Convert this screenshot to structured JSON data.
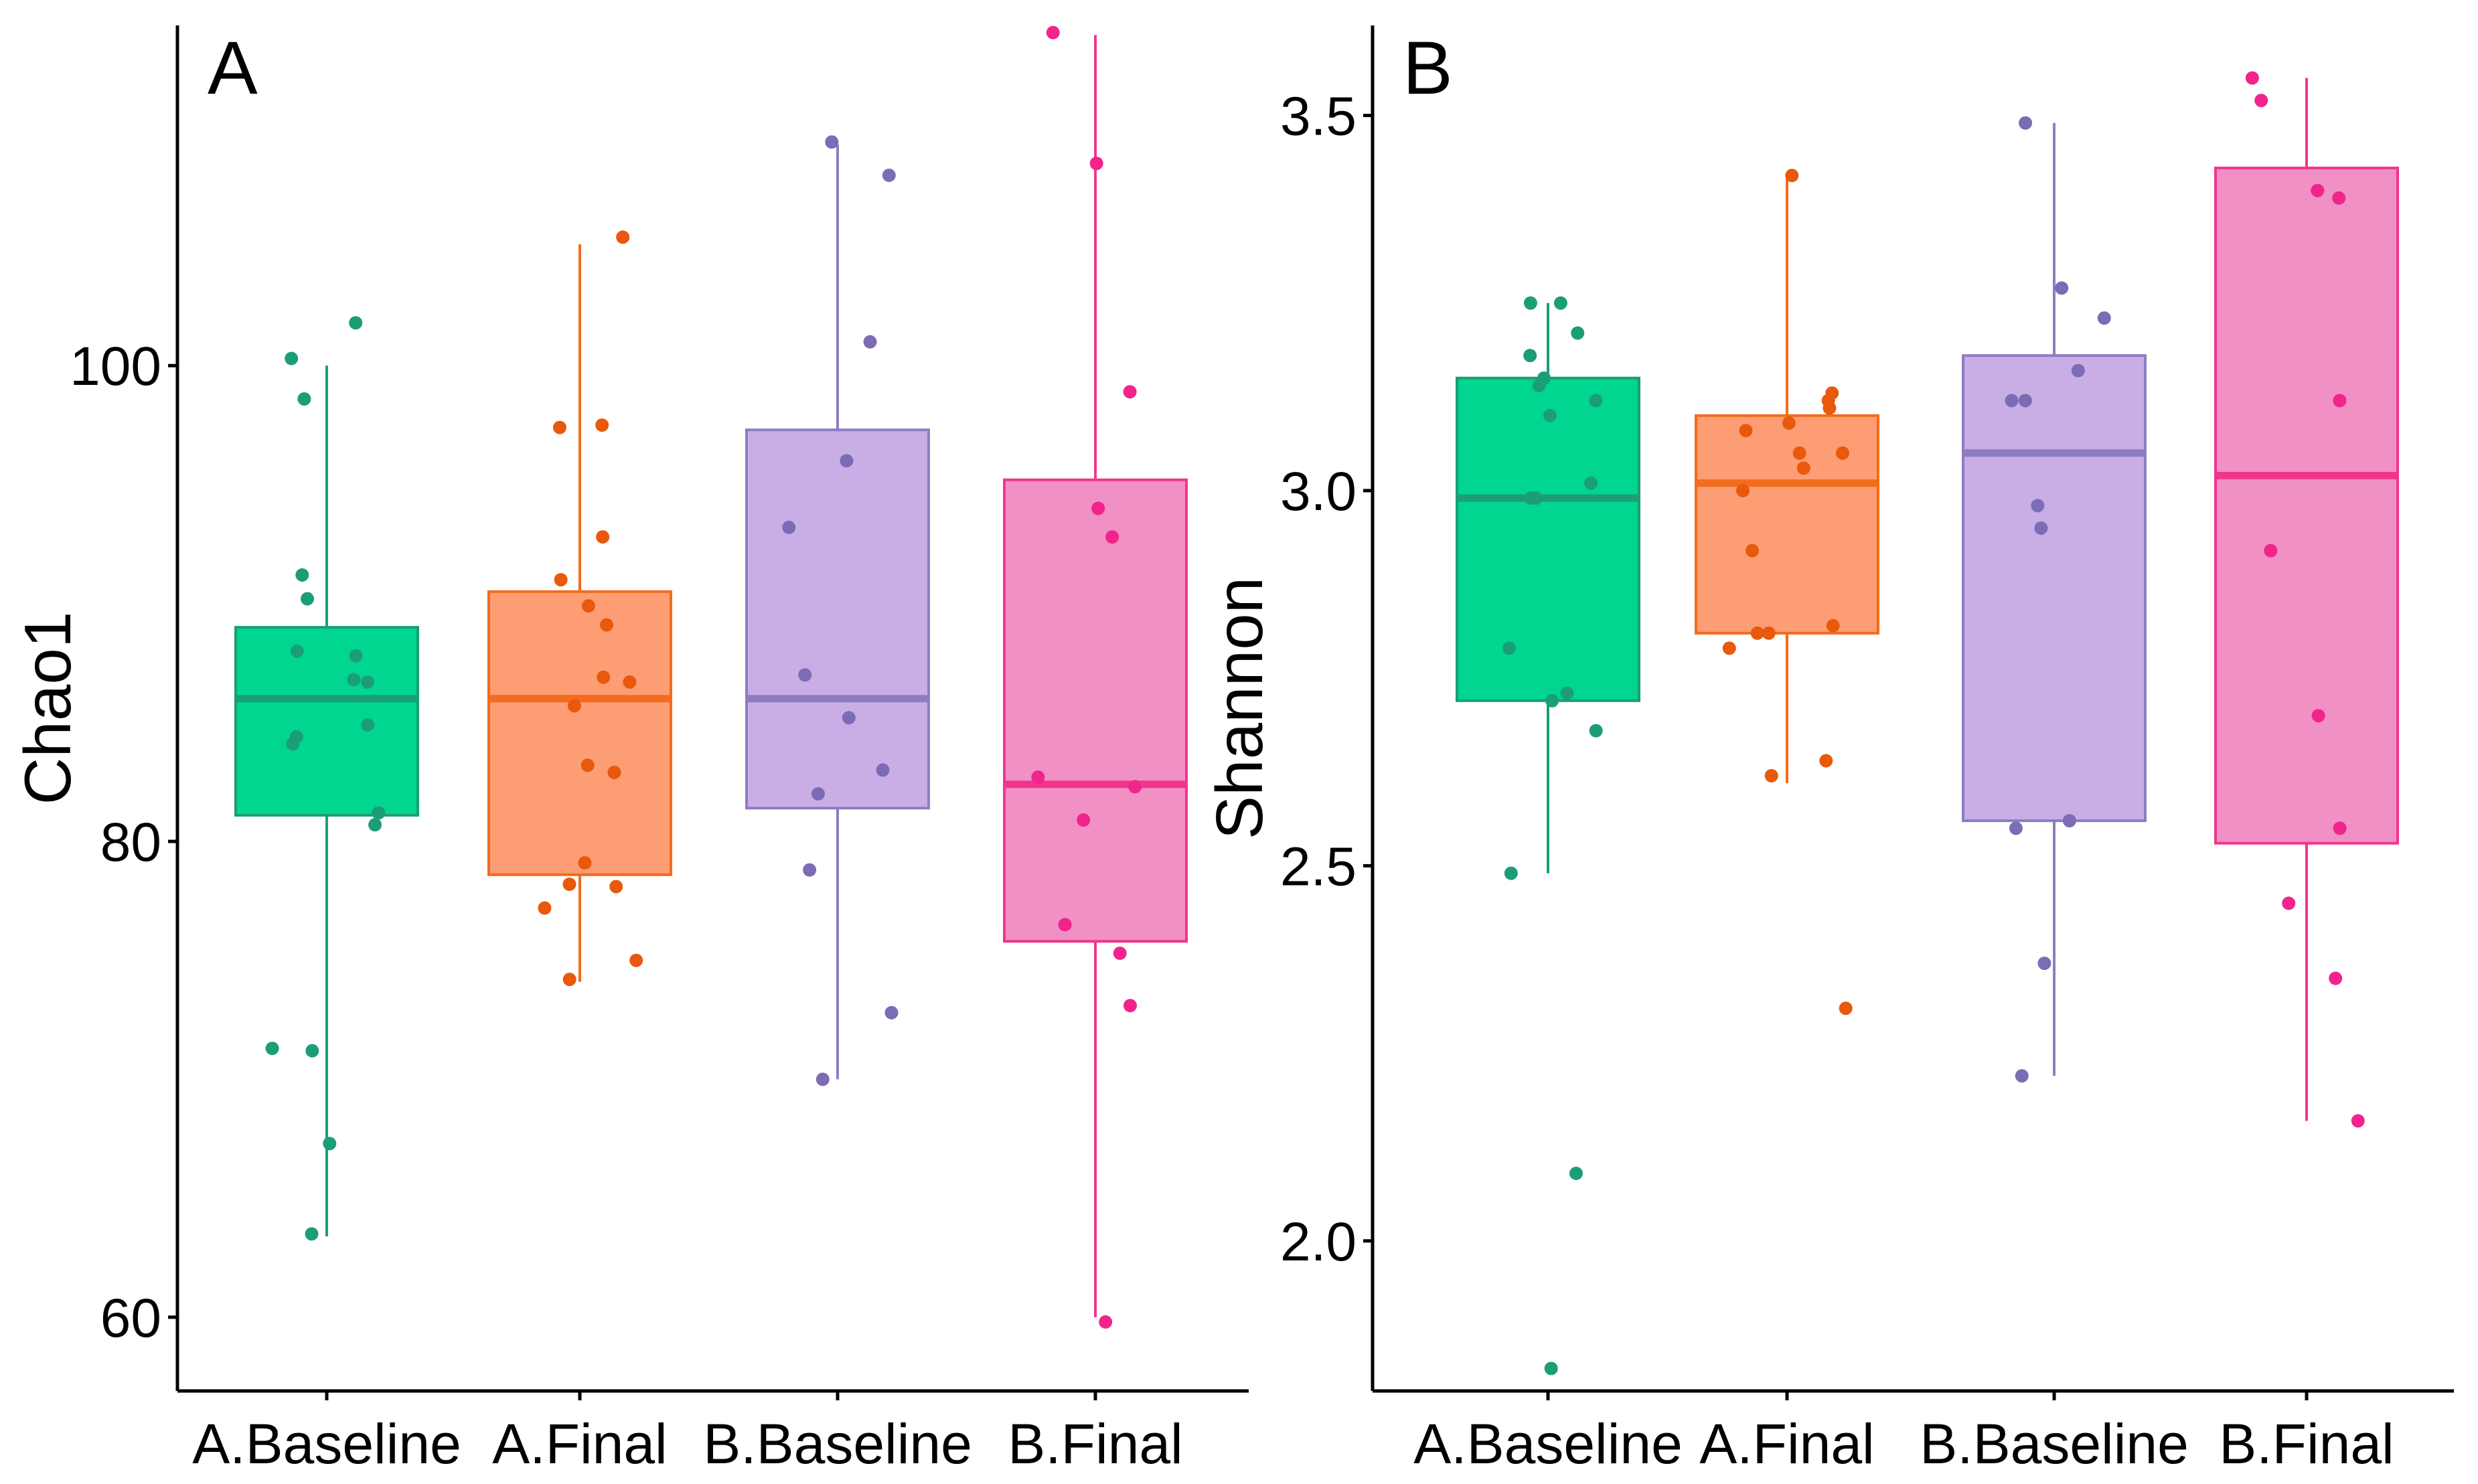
{
  "chart_data": [
    {
      "type": "box",
      "panel_label": "A",
      "xlabel": "",
      "ylabel": "Chao1",
      "ylim": [
        56.9,
        114.3
      ],
      "yticks": [
        60,
        80,
        100
      ],
      "ytick_labels": [
        "60",
        "80",
        "100"
      ],
      "categories": [
        "A.Baseline",
        "A.Final",
        "B.Baseline",
        "B.Final"
      ],
      "colors": {
        "fill": [
          "#00d68f",
          "#fd9d73",
          "#c9aee6",
          "#f090c4"
        ],
        "stroke": [
          "#1b9e77",
          "#f26b1e",
          "#8e7cc3",
          "#f0368c"
        ],
        "point": [
          "#1b9e77",
          "#e8590c",
          "#7c6bb5",
          "#f0248a"
        ]
      },
      "boxes": [
        {
          "whisker_low": 63.4,
          "q1": 81.1,
          "median": 86.0,
          "q3": 89.0,
          "whisker_high": 100.0
        },
        {
          "whisker_low": 74.1,
          "q1": 78.6,
          "median": 86.0,
          "q3": 90.5,
          "whisker_high": 105.1
        },
        {
          "whisker_low": 70.0,
          "q1": 81.4,
          "median": 86.0,
          "q3": 97.3,
          "whisker_high": 109.3
        },
        {
          "whisker_low": 60.0,
          "q1": 75.8,
          "median": 82.4,
          "q3": 95.2,
          "whisker_high": 113.9
        }
      ],
      "points": [
        {
          "group": 0,
          "value": 101.8
        },
        {
          "group": 0,
          "value": 100.3
        },
        {
          "group": 0,
          "value": 98.6
        },
        {
          "group": 0,
          "value": 91.2
        },
        {
          "group": 0,
          "value": 90.2
        },
        {
          "group": 0,
          "value": 88.0
        },
        {
          "group": 0,
          "value": 87.8
        },
        {
          "group": 0,
          "value": 86.8
        },
        {
          "group": 0,
          "value": 86.7
        },
        {
          "group": 0,
          "value": 84.9
        },
        {
          "group": 0,
          "value": 84.4
        },
        {
          "group": 0,
          "value": 84.1
        },
        {
          "group": 0,
          "value": 81.2
        },
        {
          "group": 0,
          "value": 80.7
        },
        {
          "group": 0,
          "value": 71.3
        },
        {
          "group": 0,
          "value": 71.2
        },
        {
          "group": 0,
          "value": 67.3
        },
        {
          "group": 0,
          "value": 63.5
        },
        {
          "group": 1,
          "value": 105.4
        },
        {
          "group": 1,
          "value": 97.5
        },
        {
          "group": 1,
          "value": 97.4
        },
        {
          "group": 1,
          "value": 92.8
        },
        {
          "group": 1,
          "value": 91.0
        },
        {
          "group": 1,
          "value": 89.9
        },
        {
          "group": 1,
          "value": 89.1
        },
        {
          "group": 1,
          "value": 86.9
        },
        {
          "group": 1,
          "value": 86.7
        },
        {
          "group": 1,
          "value": 85.7
        },
        {
          "group": 1,
          "value": 83.2
        },
        {
          "group": 1,
          "value": 82.9
        },
        {
          "group": 1,
          "value": 79.1
        },
        {
          "group": 1,
          "value": 78.2
        },
        {
          "group": 1,
          "value": 78.1
        },
        {
          "group": 1,
          "value": 77.2
        },
        {
          "group": 1,
          "value": 75.0
        },
        {
          "group": 1,
          "value": 74.2
        },
        {
          "group": 2,
          "value": 109.4
        },
        {
          "group": 2,
          "value": 108.0
        },
        {
          "group": 2,
          "value": 101.0
        },
        {
          "group": 2,
          "value": 96.0
        },
        {
          "group": 2,
          "value": 93.2
        },
        {
          "group": 2,
          "value": 87.0
        },
        {
          "group": 2,
          "value": 85.2
        },
        {
          "group": 2,
          "value": 83.0
        },
        {
          "group": 2,
          "value": 82.0
        },
        {
          "group": 2,
          "value": 78.8
        },
        {
          "group": 2,
          "value": 72.8
        },
        {
          "group": 2,
          "value": 70.0
        },
        {
          "group": 3,
          "value": 114.0
        },
        {
          "group": 3,
          "value": 108.5
        },
        {
          "group": 3,
          "value": 98.9
        },
        {
          "group": 3,
          "value": 94.0
        },
        {
          "group": 3,
          "value": 92.8
        },
        {
          "group": 3,
          "value": 82.7
        },
        {
          "group": 3,
          "value": 82.3
        },
        {
          "group": 3,
          "value": 80.9
        },
        {
          "group": 3,
          "value": 76.5
        },
        {
          "group": 3,
          "value": 75.3
        },
        {
          "group": 3,
          "value": 73.1
        },
        {
          "group": 3,
          "value": 59.8
        }
      ]
    },
    {
      "type": "box",
      "panel_label": "B",
      "xlabel": "",
      "ylabel": "Shannon",
      "ylim": [
        1.8,
        3.62
      ],
      "yticks": [
        2.0,
        2.5,
        3.0,
        3.5
      ],
      "ytick_labels": [
        "2.0",
        "2.5",
        "3.0",
        "3.5"
      ],
      "categories": [
        "A.Baseline",
        "A.Final",
        "B.Baseline",
        "B.Final"
      ],
      "colors": {
        "fill": [
          "#00d68f",
          "#fd9d73",
          "#c9aee6",
          "#f090c4"
        ],
        "stroke": [
          "#1b9e77",
          "#f26b1e",
          "#8e7cc3",
          "#f0368c"
        ],
        "point": [
          "#1b9e77",
          "#e8590c",
          "#7c6bb5",
          "#f0248a"
        ]
      },
      "boxes": [
        {
          "whisker_low": 2.49,
          "q1": 2.72,
          "median": 2.99,
          "q3": 3.15,
          "whisker_high": 3.25
        },
        {
          "whisker_low": 2.61,
          "q1": 2.81,
          "median": 3.01,
          "q3": 3.1,
          "whisker_high": 3.42
        },
        {
          "whisker_low": 2.22,
          "q1": 2.56,
          "median": 3.05,
          "q3": 3.18,
          "whisker_high": 3.49
        },
        {
          "whisker_low": 2.16,
          "q1": 2.53,
          "median": 3.02,
          "q3": 3.43,
          "whisker_high": 3.55
        }
      ],
      "points": [
        {
          "group": 0,
          "value": 3.25
        },
        {
          "group": 0,
          "value": 3.25
        },
        {
          "group": 0,
          "value": 3.21
        },
        {
          "group": 0,
          "value": 3.18
        },
        {
          "group": 0,
          "value": 3.15
        },
        {
          "group": 0,
          "value": 3.14
        },
        {
          "group": 0,
          "value": 3.12
        },
        {
          "group": 0,
          "value": 3.1
        },
        {
          "group": 0,
          "value": 3.01
        },
        {
          "group": 0,
          "value": 2.99
        },
        {
          "group": 0,
          "value": 2.99
        },
        {
          "group": 0,
          "value": 2.79
        },
        {
          "group": 0,
          "value": 2.73
        },
        {
          "group": 0,
          "value": 2.72
        },
        {
          "group": 0,
          "value": 2.68
        },
        {
          "group": 0,
          "value": 2.49
        },
        {
          "group": 0,
          "value": 2.09
        },
        {
          "group": 0,
          "value": 1.83
        },
        {
          "group": 1,
          "value": 3.42
        },
        {
          "group": 1,
          "value": 3.13
        },
        {
          "group": 1,
          "value": 3.12
        },
        {
          "group": 1,
          "value": 3.11
        },
        {
          "group": 1,
          "value": 3.09
        },
        {
          "group": 1,
          "value": 3.08
        },
        {
          "group": 1,
          "value": 3.05
        },
        {
          "group": 1,
          "value": 3.05
        },
        {
          "group": 1,
          "value": 3.03
        },
        {
          "group": 1,
          "value": 3.0
        },
        {
          "group": 1,
          "value": 2.92
        },
        {
          "group": 1,
          "value": 2.82
        },
        {
          "group": 1,
          "value": 2.81
        },
        {
          "group": 1,
          "value": 2.81
        },
        {
          "group": 1,
          "value": 2.79
        },
        {
          "group": 1,
          "value": 2.64
        },
        {
          "group": 1,
          "value": 2.62
        },
        {
          "group": 1,
          "value": 2.31
        },
        {
          "group": 2,
          "value": 3.49
        },
        {
          "group": 2,
          "value": 3.27
        },
        {
          "group": 2,
          "value": 3.23
        },
        {
          "group": 2,
          "value": 3.16
        },
        {
          "group": 2,
          "value": 3.12
        },
        {
          "group": 2,
          "value": 3.12
        },
        {
          "group": 2,
          "value": 2.98
        },
        {
          "group": 2,
          "value": 2.95
        },
        {
          "group": 2,
          "value": 2.56
        },
        {
          "group": 2,
          "value": 2.55
        },
        {
          "group": 2,
          "value": 2.37
        },
        {
          "group": 2,
          "value": 2.22
        },
        {
          "group": 3,
          "value": 3.55
        },
        {
          "group": 3,
          "value": 3.52
        },
        {
          "group": 3,
          "value": 3.4
        },
        {
          "group": 3,
          "value": 3.39
        },
        {
          "group": 3,
          "value": 3.12
        },
        {
          "group": 3,
          "value": 2.92
        },
        {
          "group": 3,
          "value": 2.7
        },
        {
          "group": 3,
          "value": 2.55
        },
        {
          "group": 3,
          "value": 2.45
        },
        {
          "group": 3,
          "value": 2.35
        },
        {
          "group": 3,
          "value": 2.16
        }
      ]
    }
  ]
}
